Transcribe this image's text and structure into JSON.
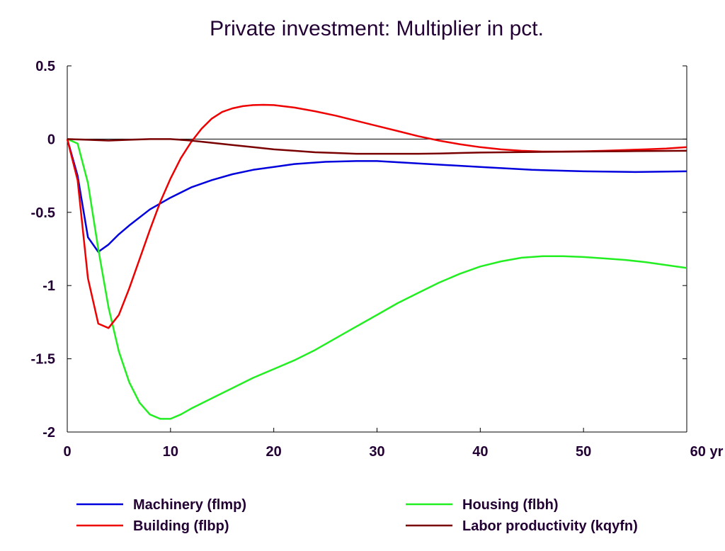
{
  "chart_data": {
    "type": "line",
    "title": "Private investment: Multiplier in pct.",
    "xlabel": "",
    "ylabel": "",
    "x_unit_label": "yr",
    "xlim": [
      0,
      60
    ],
    "ylim": [
      -2,
      0.5
    ],
    "x_ticks": [
      0,
      10,
      20,
      30,
      40,
      50,
      60
    ],
    "x_tick_labels": [
      "0",
      "10",
      "20",
      "30",
      "40",
      "50",
      "60 yr"
    ],
    "y_ticks": [
      0.5,
      0,
      -0.5,
      -1,
      -1.5,
      -2
    ],
    "y_tick_labels": [
      "0.5",
      "0",
      "-0.5",
      "-1",
      "-1.5",
      "-2"
    ],
    "grid": false,
    "zero_line": true,
    "legend_position": "bottom",
    "series": [
      {
        "name": "Machinery (flmp)",
        "color": "#0000dd",
        "x": [
          0,
          1,
          2,
          3,
          4,
          5,
          6,
          8,
          10,
          12,
          14,
          16,
          18,
          20,
          22,
          25,
          28,
          30,
          35,
          40,
          45,
          50,
          55,
          60
        ],
        "y": [
          0,
          -0.25,
          -0.67,
          -0.77,
          -0.72,
          -0.65,
          -0.59,
          -0.48,
          -0.4,
          -0.33,
          -0.28,
          -0.24,
          -0.21,
          -0.19,
          -0.17,
          -0.155,
          -0.15,
          -0.15,
          -0.17,
          -0.19,
          -0.21,
          -0.22,
          -0.225,
          -0.22
        ]
      },
      {
        "name": "Housing (flbh)",
        "color": "#22ee22",
        "x": [
          0,
          1,
          2,
          3,
          4,
          5,
          6,
          7,
          8,
          9,
          10,
          11,
          12,
          14,
          16,
          18,
          20,
          22,
          24,
          26,
          28,
          30,
          32,
          34,
          36,
          38,
          40,
          42,
          44,
          46,
          48,
          50,
          52,
          54,
          56,
          58,
          60
        ],
        "y": [
          0,
          -0.03,
          -0.3,
          -0.75,
          -1.15,
          -1.45,
          -1.66,
          -1.8,
          -1.88,
          -1.91,
          -1.91,
          -1.88,
          -1.84,
          -1.77,
          -1.7,
          -1.63,
          -1.57,
          -1.51,
          -1.44,
          -1.36,
          -1.28,
          -1.2,
          -1.12,
          -1.05,
          -0.98,
          -0.92,
          -0.87,
          -0.835,
          -0.81,
          -0.8,
          -0.8,
          -0.805,
          -0.815,
          -0.825,
          -0.84,
          -0.86,
          -0.88
        ]
      },
      {
        "name": "Building (flbp)",
        "color": "#ee0000",
        "x": [
          0,
          1,
          2,
          3,
          4,
          5,
          6,
          7,
          8,
          9,
          10,
          11,
          12,
          13,
          14,
          15,
          16,
          17,
          18,
          19,
          20,
          22,
          24,
          26,
          28,
          30,
          32,
          34,
          36,
          38,
          40,
          42,
          44,
          46,
          48,
          50,
          52,
          54,
          56,
          58,
          60
        ],
        "y": [
          0,
          -0.28,
          -0.95,
          -1.26,
          -1.29,
          -1.2,
          -1.02,
          -0.82,
          -0.62,
          -0.43,
          -0.27,
          -0.13,
          -0.02,
          0.07,
          0.14,
          0.185,
          0.21,
          0.225,
          0.232,
          0.234,
          0.232,
          0.215,
          0.19,
          0.16,
          0.125,
          0.09,
          0.055,
          0.02,
          -0.01,
          -0.035,
          -0.055,
          -0.07,
          -0.08,
          -0.085,
          -0.085,
          -0.083,
          -0.08,
          -0.075,
          -0.07,
          -0.065,
          -0.055
        ]
      },
      {
        "name": "Labor productivity (kqyfn)",
        "color": "#7a0000",
        "x": [
          0,
          2,
          4,
          6,
          8,
          10,
          12,
          14,
          16,
          18,
          20,
          22,
          24,
          26,
          28,
          30,
          32,
          34,
          36,
          38,
          40,
          45,
          50,
          55,
          60
        ],
        "y": [
          0,
          -0.005,
          -0.01,
          -0.005,
          0,
          0,
          -0.01,
          -0.025,
          -0.04,
          -0.055,
          -0.07,
          -0.08,
          -0.09,
          -0.095,
          -0.1,
          -0.1,
          -0.1,
          -0.1,
          -0.098,
          -0.095,
          -0.092,
          -0.088,
          -0.085,
          -0.082,
          -0.08
        ]
      }
    ]
  }
}
